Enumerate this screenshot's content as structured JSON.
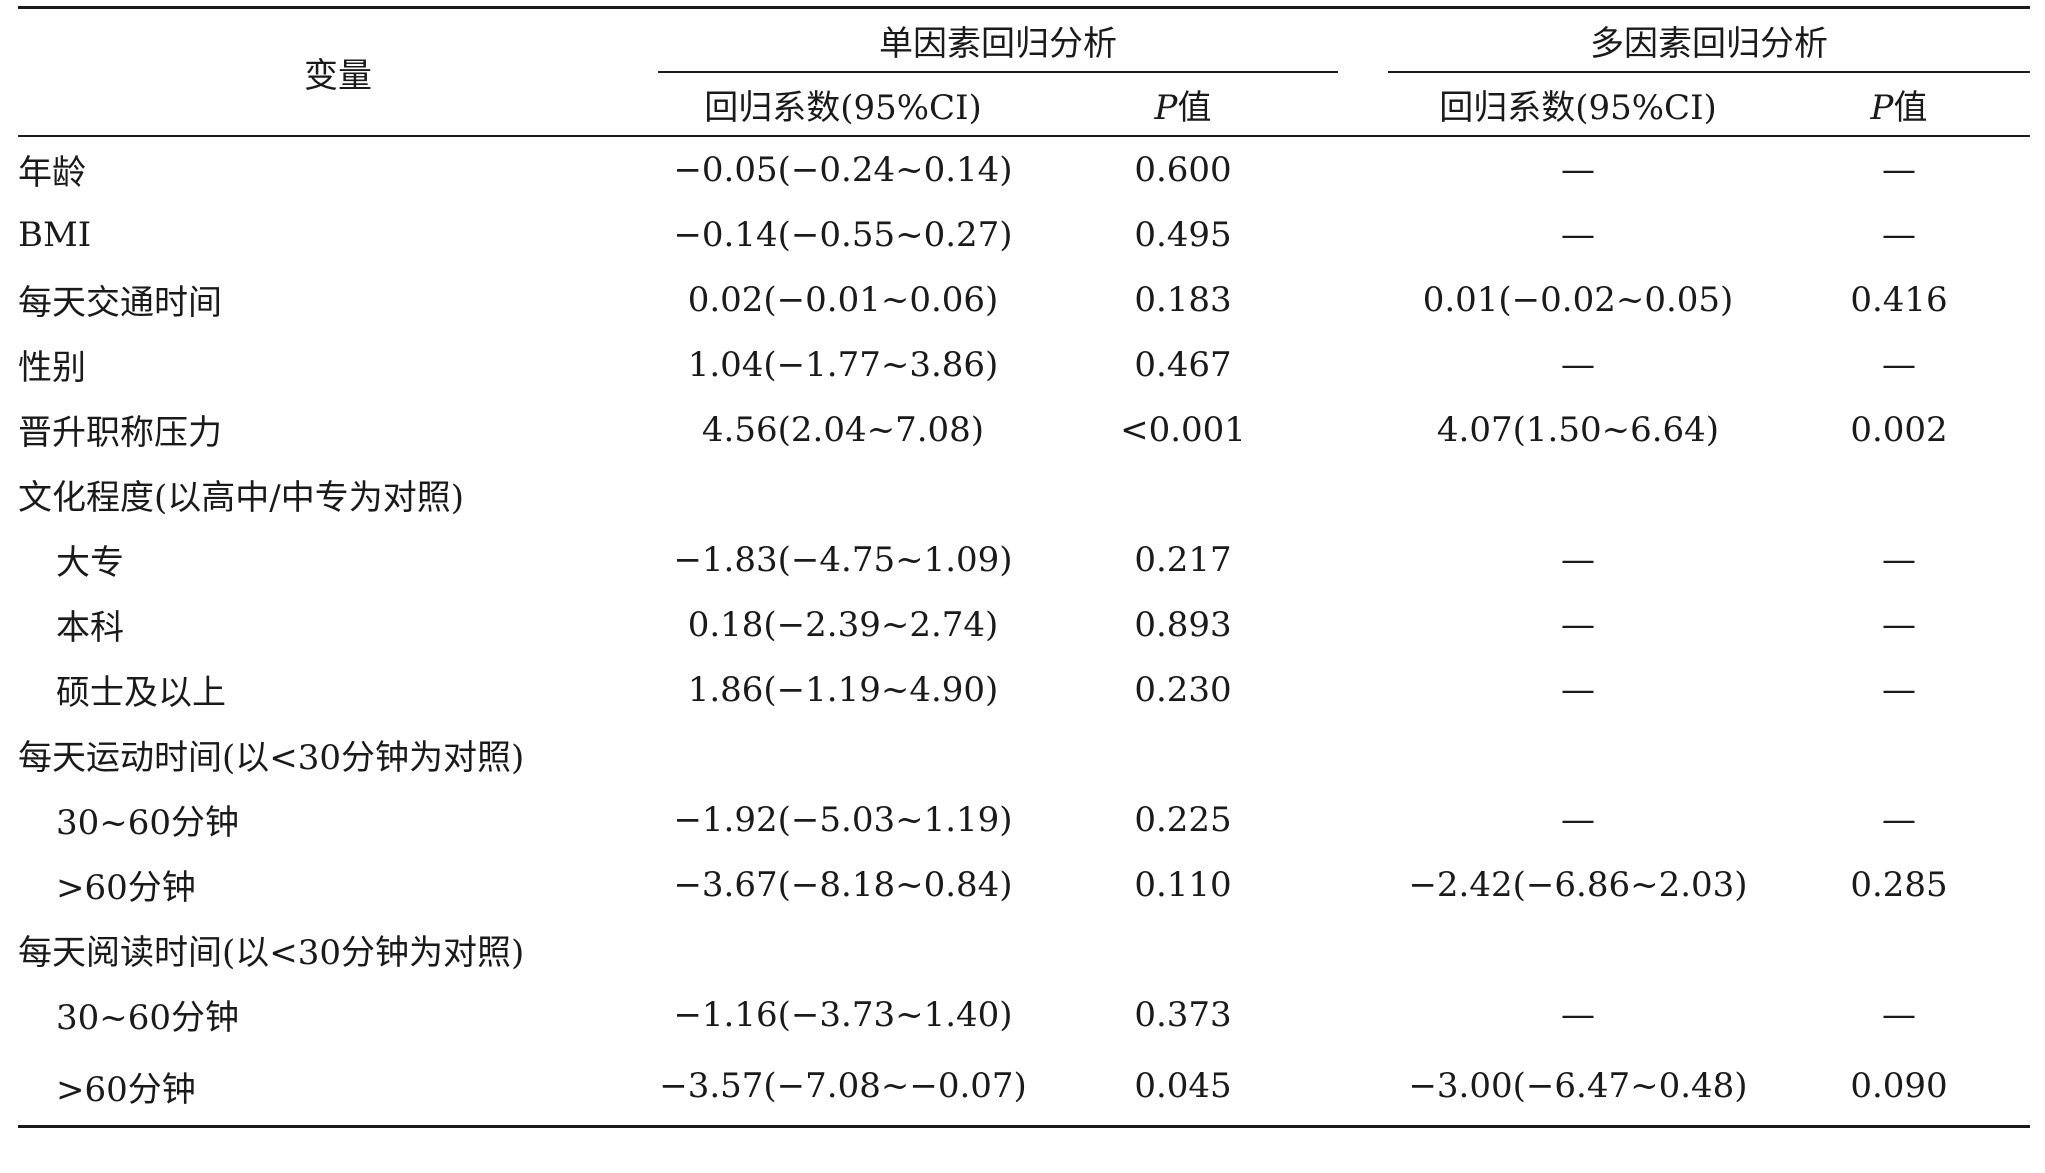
{
  "header": {
    "variable": "变量",
    "univariate": "单因素回归分析",
    "multivariate": "多因素回归分析",
    "coef": "回归系数(95%CI)",
    "p_letter": "P",
    "p_suffix": "值"
  },
  "rows": [
    {
      "label": "年龄",
      "sub": false,
      "uc": "−0.05(−0.24~0.14)",
      "up": "0.600",
      "mc": "—",
      "mp": "—"
    },
    {
      "label": "BMI",
      "sub": false,
      "uc": "−0.14(−0.55~0.27)",
      "up": "0.495",
      "mc": "—",
      "mp": "—"
    },
    {
      "label": "每天交通时间",
      "sub": false,
      "uc": "0.02(−0.01~0.06)",
      "up": "0.183",
      "mc": "0.01(−0.02~0.05)",
      "mp": "0.416"
    },
    {
      "label": "性别",
      "sub": false,
      "uc": "1.04(−1.77~3.86)",
      "up": "0.467",
      "mc": "—",
      "mp": "—"
    },
    {
      "label": "晋升职称压力",
      "sub": false,
      "uc": "4.56(2.04~7.08)",
      "up": "<0.001",
      "mc": "4.07(1.50~6.64)",
      "mp": "0.002"
    },
    {
      "label": "文化程度(以高中/中专为对照)",
      "sub": false,
      "uc": "",
      "up": "",
      "mc": "",
      "mp": ""
    },
    {
      "label": "大专",
      "sub": true,
      "uc": "−1.83(−4.75~1.09)",
      "up": "0.217",
      "mc": "—",
      "mp": "—"
    },
    {
      "label": "本科",
      "sub": true,
      "uc": "0.18(−2.39~2.74)",
      "up": "0.893",
      "mc": "—",
      "mp": "—"
    },
    {
      "label": "硕士及以上",
      "sub": true,
      "uc": "1.86(−1.19~4.90)",
      "up": "0.230",
      "mc": "—",
      "mp": "—"
    },
    {
      "label": "每天运动时间(以<30分钟为对照)",
      "sub": false,
      "uc": "",
      "up": "",
      "mc": "",
      "mp": ""
    },
    {
      "label": "30~60分钟",
      "sub": true,
      "uc": "−1.92(−5.03~1.19)",
      "up": "0.225",
      "mc": "—",
      "mp": "—"
    },
    {
      "label": ">60分钟",
      "sub": true,
      "uc": "−3.67(−8.18~0.84)",
      "up": "0.110",
      "mc": "−2.42(−6.86~2.03)",
      "mp": "0.285"
    },
    {
      "label": "每天阅读时间(以<30分钟为对照)",
      "sub": false,
      "uc": "",
      "up": "",
      "mc": "",
      "mp": ""
    },
    {
      "label": "30~60分钟",
      "sub": true,
      "uc": "−1.16(−3.73~1.40)",
      "up": "0.373",
      "mc": "—",
      "mp": "—"
    },
    {
      "label": ">60分钟",
      "sub": true,
      "uc": "−3.57(−7.08~−0.07)",
      "up": "0.045",
      "mc": "−3.00(−6.47~0.48)",
      "mp": "0.090"
    }
  ]
}
